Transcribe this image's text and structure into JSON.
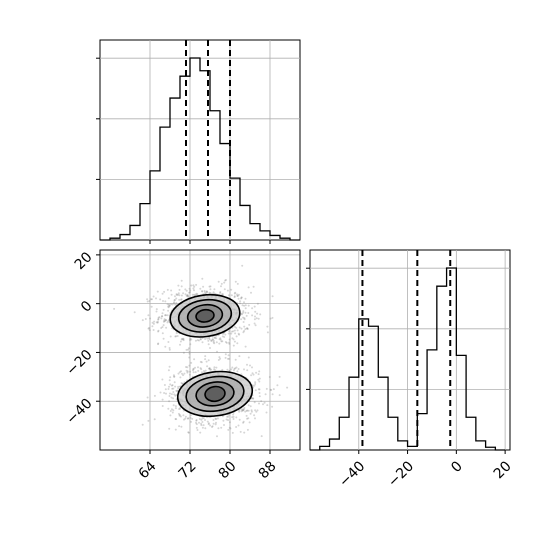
{
  "chart_data": [
    {
      "type": "histogram",
      "panel": "x-marginal",
      "x_range": [
        54,
        94
      ],
      "bins_x": [
        54.0,
        56.0,
        58.0,
        60.0,
        62.0,
        64.0,
        66.0,
        68.0,
        70.0,
        72.0,
        74.0,
        76.0,
        78.0,
        80.0,
        82.0,
        84.0,
        86.0,
        88.0,
        90.0,
        92.0,
        94.0
      ],
      "counts_relative": [
        0.0,
        0.01,
        0.03,
        0.08,
        0.2,
        0.38,
        0.62,
        0.78,
        0.9,
        1.0,
        0.93,
        0.71,
        0.53,
        0.34,
        0.19,
        0.09,
        0.05,
        0.025,
        0.01,
        0.0
      ],
      "quantile_lines": [
        71.2,
        75.6,
        80.0
      ],
      "grid": true,
      "y_tick_fractions": [
        0.303,
        0.606,
        0.909
      ]
    },
    {
      "type": "scatter+contour",
      "panel": "joint",
      "x_range": [
        54,
        94
      ],
      "y_range": [
        -60,
        22
      ],
      "xticks": [
        64,
        72,
        80,
        88
      ],
      "yticks": [
        20,
        0,
        -20,
        -40
      ],
      "clusters": [
        {
          "center": [
            75.0,
            -5.0
          ],
          "spread": [
            4.5,
            6.0
          ],
          "contours": [
            [
              1.8,
              2.5
            ],
            [
              3.5,
              4.5
            ],
            [
              5.3,
              6.5
            ],
            [
              7.0,
              8.5
            ]
          ]
        },
        {
          "center": [
            77.0,
            -37.0
          ],
          "spread": [
            4.5,
            6.0
          ],
          "contours": [
            [
              2.0,
              3.0
            ],
            [
              3.8,
              4.8
            ],
            [
              5.8,
              7.0
            ],
            [
              7.5,
              9.0
            ]
          ]
        }
      ],
      "grid": true
    },
    {
      "type": "histogram",
      "panel": "y-marginal",
      "x_range": [
        -60,
        22
      ],
      "bins_x": [
        -60.0,
        -56.0,
        -52.0,
        -48.0,
        -44.0,
        -40.0,
        -36.0,
        -32.0,
        -28.0,
        -24.0,
        -20.0,
        -16.0,
        -12.0,
        -8.0,
        -4.0,
        0.0,
        4.0,
        8.0,
        12.0,
        16.0,
        20.0
      ],
      "counts_relative": [
        0.0,
        0.02,
        0.06,
        0.18,
        0.4,
        0.72,
        0.68,
        0.4,
        0.18,
        0.05,
        0.02,
        0.2,
        0.55,
        0.9,
        1.0,
        0.52,
        0.18,
        0.05,
        0.015,
        0.0
      ],
      "quantile_lines": [
        -38.5,
        -16.0,
        -2.5
      ],
      "xticks": [
        -40,
        -20,
        0,
        20
      ],
      "grid": true,
      "y_tick_fractions": [
        0.303,
        0.606,
        0.909
      ]
    }
  ]
}
